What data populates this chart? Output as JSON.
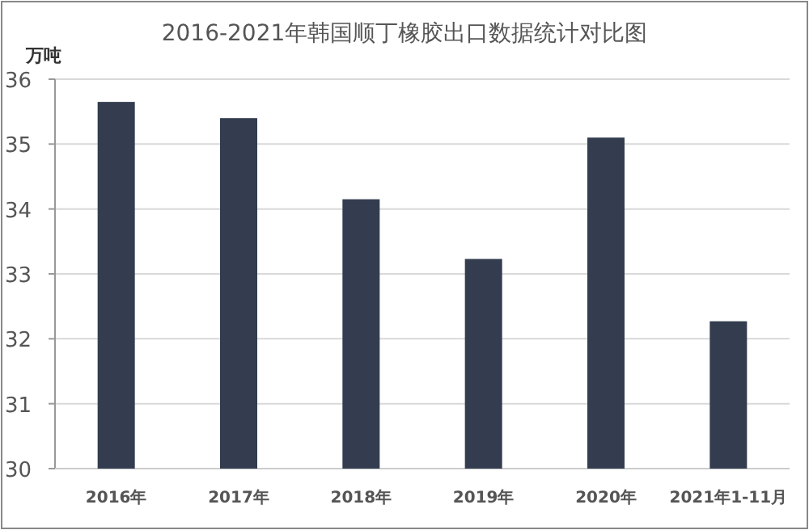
{
  "chart_data": {
    "type": "bar",
    "title": "2016-2021年韩国顺丁橡胶出口数据统计对比图",
    "ylabel": "万吨",
    "categories": [
      "2016年",
      "2017年",
      "2018年",
      "2019年",
      "2020年",
      "2021年1-11月"
    ],
    "values": [
      35.65,
      35.4,
      34.15,
      33.23,
      35.1,
      32.27
    ],
    "color": "#333d4f",
    "ylim": [
      30,
      36
    ],
    "yticks": [
      30,
      31,
      32,
      33,
      34,
      35,
      36
    ],
    "grid": "y"
  }
}
